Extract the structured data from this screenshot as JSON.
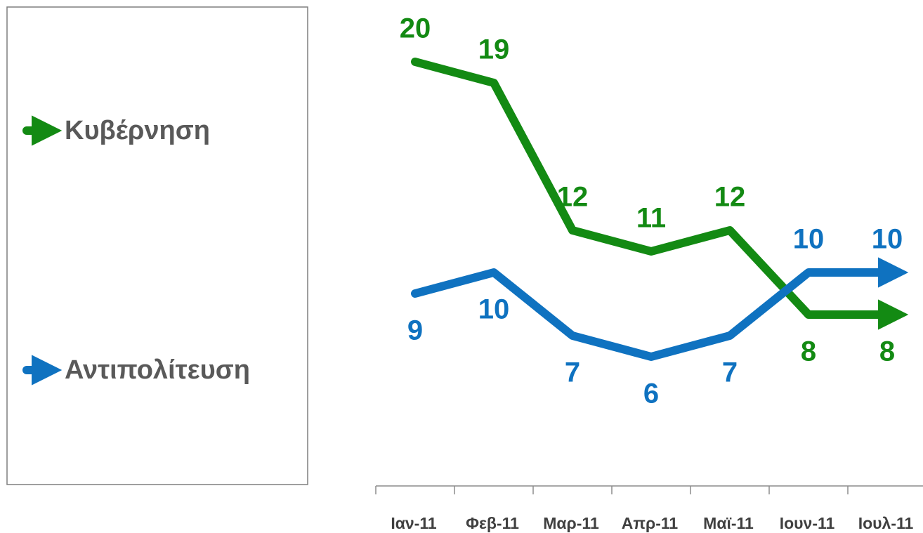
{
  "chart_data": {
    "type": "line",
    "categories": [
      "Ιαν-11",
      "Φεβ-11",
      "Μαρ-11",
      "Απρ-11",
      "Μαϊ-11",
      "Ιουν-11",
      "Ιουλ-11"
    ],
    "series": [
      {
        "name": "Κυβέρνηση",
        "color": "#138a13",
        "values": [
          20,
          19,
          12,
          11,
          12,
          8,
          8
        ]
      },
      {
        "name": "Αντιπολίτευση",
        "color": "#0f72c0",
        "values": [
          9,
          10,
          7,
          6,
          7,
          10,
          10
        ]
      }
    ],
    "ylim": [
      0,
      20
    ]
  }
}
